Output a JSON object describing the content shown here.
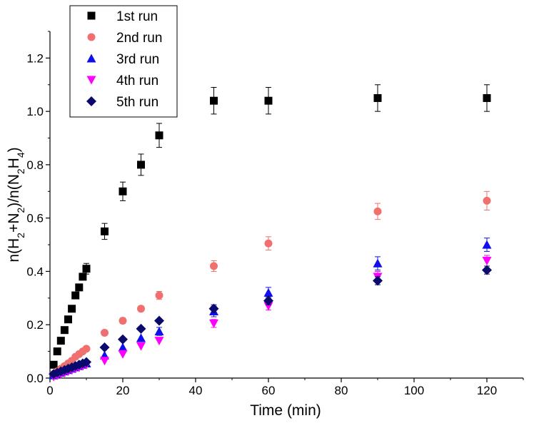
{
  "chart_data": {
    "type": "scatter",
    "xlabel": "Time (min)",
    "ylabel": {
      "p1": "n(H",
      "s1": "2",
      "p2": "+N",
      "s2": "2",
      "p3": ")/n(N",
      "s3": "2",
      "p4": "H",
      "s4": "4",
      "p5": ")"
    },
    "xlim": [
      0,
      130
    ],
    "ylim": [
      0,
      1.3
    ],
    "xticks": [
      "0",
      "20",
      "40",
      "60",
      "80",
      "100",
      "120"
    ],
    "yticks": [
      "0.0",
      "0.2",
      "0.4",
      "0.6",
      "0.8",
      "1.0",
      "1.2"
    ],
    "legend_position": "top-left",
    "series": [
      {
        "name": "1st run",
        "marker": "square",
        "color": "#000000",
        "points": [
          {
            "x": 1,
            "y": 0.05
          },
          {
            "x": 2,
            "y": 0.1
          },
          {
            "x": 3,
            "y": 0.14
          },
          {
            "x": 4,
            "y": 0.18
          },
          {
            "x": 5,
            "y": 0.22
          },
          {
            "x": 6,
            "y": 0.26
          },
          {
            "x": 7,
            "y": 0.31
          },
          {
            "x": 8,
            "y": 0.34
          },
          {
            "x": 9,
            "y": 0.38
          },
          {
            "x": 10,
            "y": 0.41,
            "err": 0.02
          },
          {
            "x": 15,
            "y": 0.55,
            "err": 0.03
          },
          {
            "x": 20,
            "y": 0.7,
            "err": 0.035
          },
          {
            "x": 25,
            "y": 0.8,
            "err": 0.04
          },
          {
            "x": 30,
            "y": 0.91,
            "err": 0.045
          },
          {
            "x": 45,
            "y": 1.04,
            "err": 0.05
          },
          {
            "x": 60,
            "y": 1.04,
            "err": 0.05
          },
          {
            "x": 90,
            "y": 1.05,
            "err": 0.05
          },
          {
            "x": 120,
            "y": 1.05,
            "err": 0.05
          }
        ]
      },
      {
        "name": "2nd run",
        "marker": "circle",
        "color": "#f07070",
        "points": [
          {
            "x": 1,
            "y": 0.015
          },
          {
            "x": 2,
            "y": 0.025
          },
          {
            "x": 3,
            "y": 0.035
          },
          {
            "x": 4,
            "y": 0.045
          },
          {
            "x": 5,
            "y": 0.055
          },
          {
            "x": 6,
            "y": 0.065
          },
          {
            "x": 7,
            "y": 0.08
          },
          {
            "x": 8,
            "y": 0.09
          },
          {
            "x": 9,
            "y": 0.1
          },
          {
            "x": 10,
            "y": 0.11
          },
          {
            "x": 15,
            "y": 0.17,
            "err": 0.01
          },
          {
            "x": 20,
            "y": 0.215,
            "err": 0.01
          },
          {
            "x": 25,
            "y": 0.26,
            "err": 0.01
          },
          {
            "x": 30,
            "y": 0.31,
            "err": 0.015
          },
          {
            "x": 45,
            "y": 0.42,
            "err": 0.02
          },
          {
            "x": 60,
            "y": 0.505,
            "err": 0.025
          },
          {
            "x": 90,
            "y": 0.625,
            "err": 0.03
          },
          {
            "x": 120,
            "y": 0.665,
            "err": 0.035
          }
        ]
      },
      {
        "name": "3rd run",
        "marker": "triangle-up",
        "color": "#1010ee",
        "points": [
          {
            "x": 1,
            "y": 0.01
          },
          {
            "x": 2,
            "y": 0.015
          },
          {
            "x": 3,
            "y": 0.02
          },
          {
            "x": 4,
            "y": 0.025
          },
          {
            "x": 5,
            "y": 0.03
          },
          {
            "x": 6,
            "y": 0.035
          },
          {
            "x": 7,
            "y": 0.04
          },
          {
            "x": 8,
            "y": 0.045
          },
          {
            "x": 9,
            "y": 0.05
          },
          {
            "x": 10,
            "y": 0.055
          },
          {
            "x": 15,
            "y": 0.085
          },
          {
            "x": 20,
            "y": 0.115
          },
          {
            "x": 25,
            "y": 0.15
          },
          {
            "x": 30,
            "y": 0.175,
            "err": 0.015
          },
          {
            "x": 45,
            "y": 0.25,
            "err": 0.02
          },
          {
            "x": 60,
            "y": 0.32,
            "err": 0.02
          },
          {
            "x": 90,
            "y": 0.43,
            "err": 0.025
          },
          {
            "x": 120,
            "y": 0.5,
            "err": 0.025
          }
        ]
      },
      {
        "name": "4th run",
        "marker": "triangle-down",
        "color": "#ff00ff",
        "points": [
          {
            "x": 1,
            "y": 0.005
          },
          {
            "x": 2,
            "y": 0.01
          },
          {
            "x": 3,
            "y": 0.015
          },
          {
            "x": 4,
            "y": 0.02
          },
          {
            "x": 5,
            "y": 0.025
          },
          {
            "x": 6,
            "y": 0.03
          },
          {
            "x": 7,
            "y": 0.035
          },
          {
            "x": 8,
            "y": 0.04
          },
          {
            "x": 9,
            "y": 0.045
          },
          {
            "x": 10,
            "y": 0.05
          },
          {
            "x": 15,
            "y": 0.065
          },
          {
            "x": 20,
            "y": 0.09
          },
          {
            "x": 25,
            "y": 0.12
          },
          {
            "x": 30,
            "y": 0.14
          },
          {
            "x": 45,
            "y": 0.205,
            "err": 0.015
          },
          {
            "x": 60,
            "y": 0.27,
            "err": 0.015
          },
          {
            "x": 90,
            "y": 0.38,
            "err": 0.02
          },
          {
            "x": 120,
            "y": 0.44,
            "err": 0.02
          }
        ]
      },
      {
        "name": "5th run",
        "marker": "diamond",
        "color": "#0a0a6e",
        "points": [
          {
            "x": 1,
            "y": 0.015
          },
          {
            "x": 2,
            "y": 0.02
          },
          {
            "x": 3,
            "y": 0.025
          },
          {
            "x": 4,
            "y": 0.03
          },
          {
            "x": 5,
            "y": 0.035
          },
          {
            "x": 6,
            "y": 0.04
          },
          {
            "x": 7,
            "y": 0.045
          },
          {
            "x": 8,
            "y": 0.05
          },
          {
            "x": 9,
            "y": 0.055
          },
          {
            "x": 10,
            "y": 0.06
          },
          {
            "x": 15,
            "y": 0.115
          },
          {
            "x": 20,
            "y": 0.145
          },
          {
            "x": 25,
            "y": 0.185
          },
          {
            "x": 30,
            "y": 0.215
          },
          {
            "x": 45,
            "y": 0.26,
            "err": 0.015
          },
          {
            "x": 60,
            "y": 0.29,
            "err": 0.015
          },
          {
            "x": 90,
            "y": 0.365,
            "err": 0.015
          },
          {
            "x": 120,
            "y": 0.405,
            "err": 0.015
          }
        ]
      }
    ]
  }
}
